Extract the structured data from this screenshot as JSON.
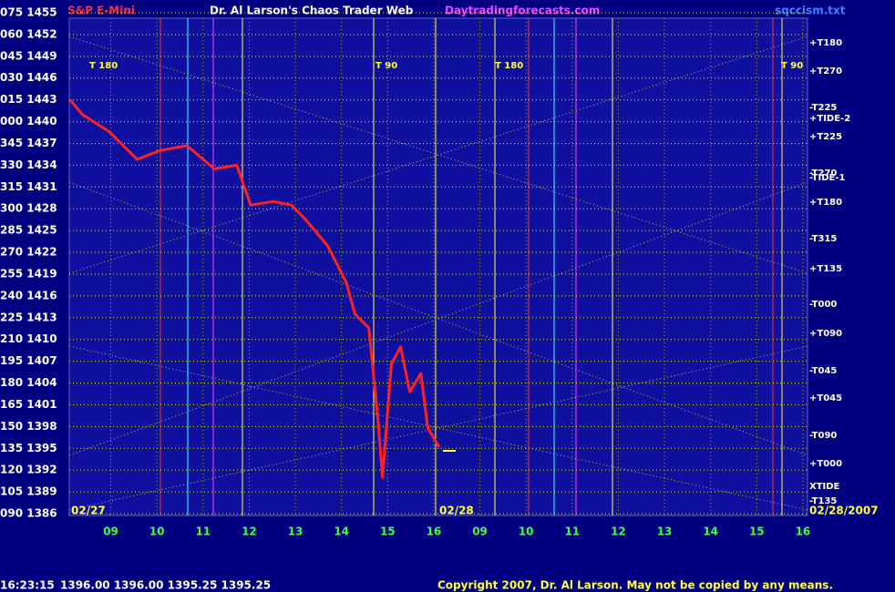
{
  "chart_data": {
    "type": "line",
    "title": "Dr. Al Larson's Chaos Trader Web",
    "instrument": "S&P E-Mini",
    "website": "Daytradingforecasts.com",
    "file": "sqccism.txt",
    "copyright": "Copyright 2007, Dr. Al Larson. May not be copied by any means.",
    "status_time": "16:23:15",
    "status_quote": "1396.00 1396.00 1395.25 1395.25",
    "dates": [
      "02/27",
      "02/28",
      "02/28/2007"
    ],
    "markers": [
      "T 180",
      "T 90",
      "T 180",
      "T 90"
    ],
    "right_labels": [
      "+T180",
      "+T270",
      "-T225",
      "+TIDE-2",
      "+T225",
      "-T270",
      "-TIDE-1",
      "+T180",
      "-T315",
      "+T135",
      "-T000",
      "+T090",
      "-T045",
      "+T045",
      "-T090",
      "+T000",
      "XTIDE",
      "-T135"
    ],
    "xlim": [
      8.1,
      24.1
    ],
    "xticks": [
      {
        "value": 9,
        "label": "09"
      },
      10,
      11,
      12,
      13,
      14,
      15,
      16,
      {
        "value": 17,
        "label": "09"
      },
      {
        "value": 18,
        "label": "10"
      },
      {
        "value": 19,
        "label": "11"
      },
      {
        "value": 20,
        "label": "12"
      },
      {
        "value": 21,
        "label": "13"
      },
      {
        "value": 22,
        "label": "14"
      },
      {
        "value": 23,
        "label": "15"
      },
      {
        "value": 24,
        "label": "16"
      }
    ],
    "ylim": [
      1386,
      1455
    ],
    "yticks": [
      {
        "value": 1455,
        "label": "075 1455"
      },
      {
        "value": 1452,
        "label": "060 1452"
      },
      {
        "value": 1449,
        "label": "045 1449"
      },
      {
        "value": 1446,
        "label": "030 1446"
      },
      {
        "value": 1443,
        "label": "015 1443"
      },
      {
        "value": 1440,
        "label": "000 1440"
      },
      {
        "value": 1437,
        "label": "345 1437"
      },
      {
        "value": 1434,
        "label": "330 1434"
      },
      {
        "value": 1431,
        "label": "315 1431"
      },
      {
        "value": 1428,
        "label": "300 1428"
      },
      {
        "value": 1425,
        "label": "285 1425"
      },
      {
        "value": 1422,
        "label": "270 1422"
      },
      {
        "value": 1419,
        "label": "255 1419"
      },
      {
        "value": 1416,
        "label": "240 1416"
      },
      {
        "value": 1413,
        "label": "225 1413"
      },
      {
        "value": 1410,
        "label": "210 1410"
      },
      {
        "value": 1407,
        "label": "195 1407"
      },
      {
        "value": 1404,
        "label": "180 1404"
      },
      {
        "value": 1401,
        "label": "165 1401"
      },
      {
        "value": 1398,
        "label": "150 1398"
      },
      {
        "value": 1395,
        "label": "135 1395"
      },
      {
        "value": 1392,
        "label": "120 1392"
      },
      {
        "value": 1389,
        "label": "105 1389"
      },
      {
        "value": 1386,
        "label": "090 1386"
      }
    ],
    "grid": true,
    "series": [
      {
        "color": "#ff2020",
        "x": [
          8.12,
          8.38,
          8.97,
          9.57,
          10.06,
          10.65,
          11.24,
          11.73,
          12.03,
          12.52,
          12.92,
          13.21,
          13.7,
          14.1,
          14.29,
          14.59,
          14.79,
          14.89,
          15.08,
          15.28,
          15.48,
          15.72,
          15.87,
          16.11
        ],
        "values": [
          1443,
          1441,
          1438.6,
          1434.8,
          1436,
          1436.7,
          1433.5,
          1434,
          1428.5,
          1429,
          1428.5,
          1426.6,
          1422.9,
          1417.9,
          1413.5,
          1411.6,
          1399,
          1391,
          1406.6,
          1409,
          1402.8,
          1405.3,
          1397.8,
          1395.25
        ]
      }
    ]
  }
}
